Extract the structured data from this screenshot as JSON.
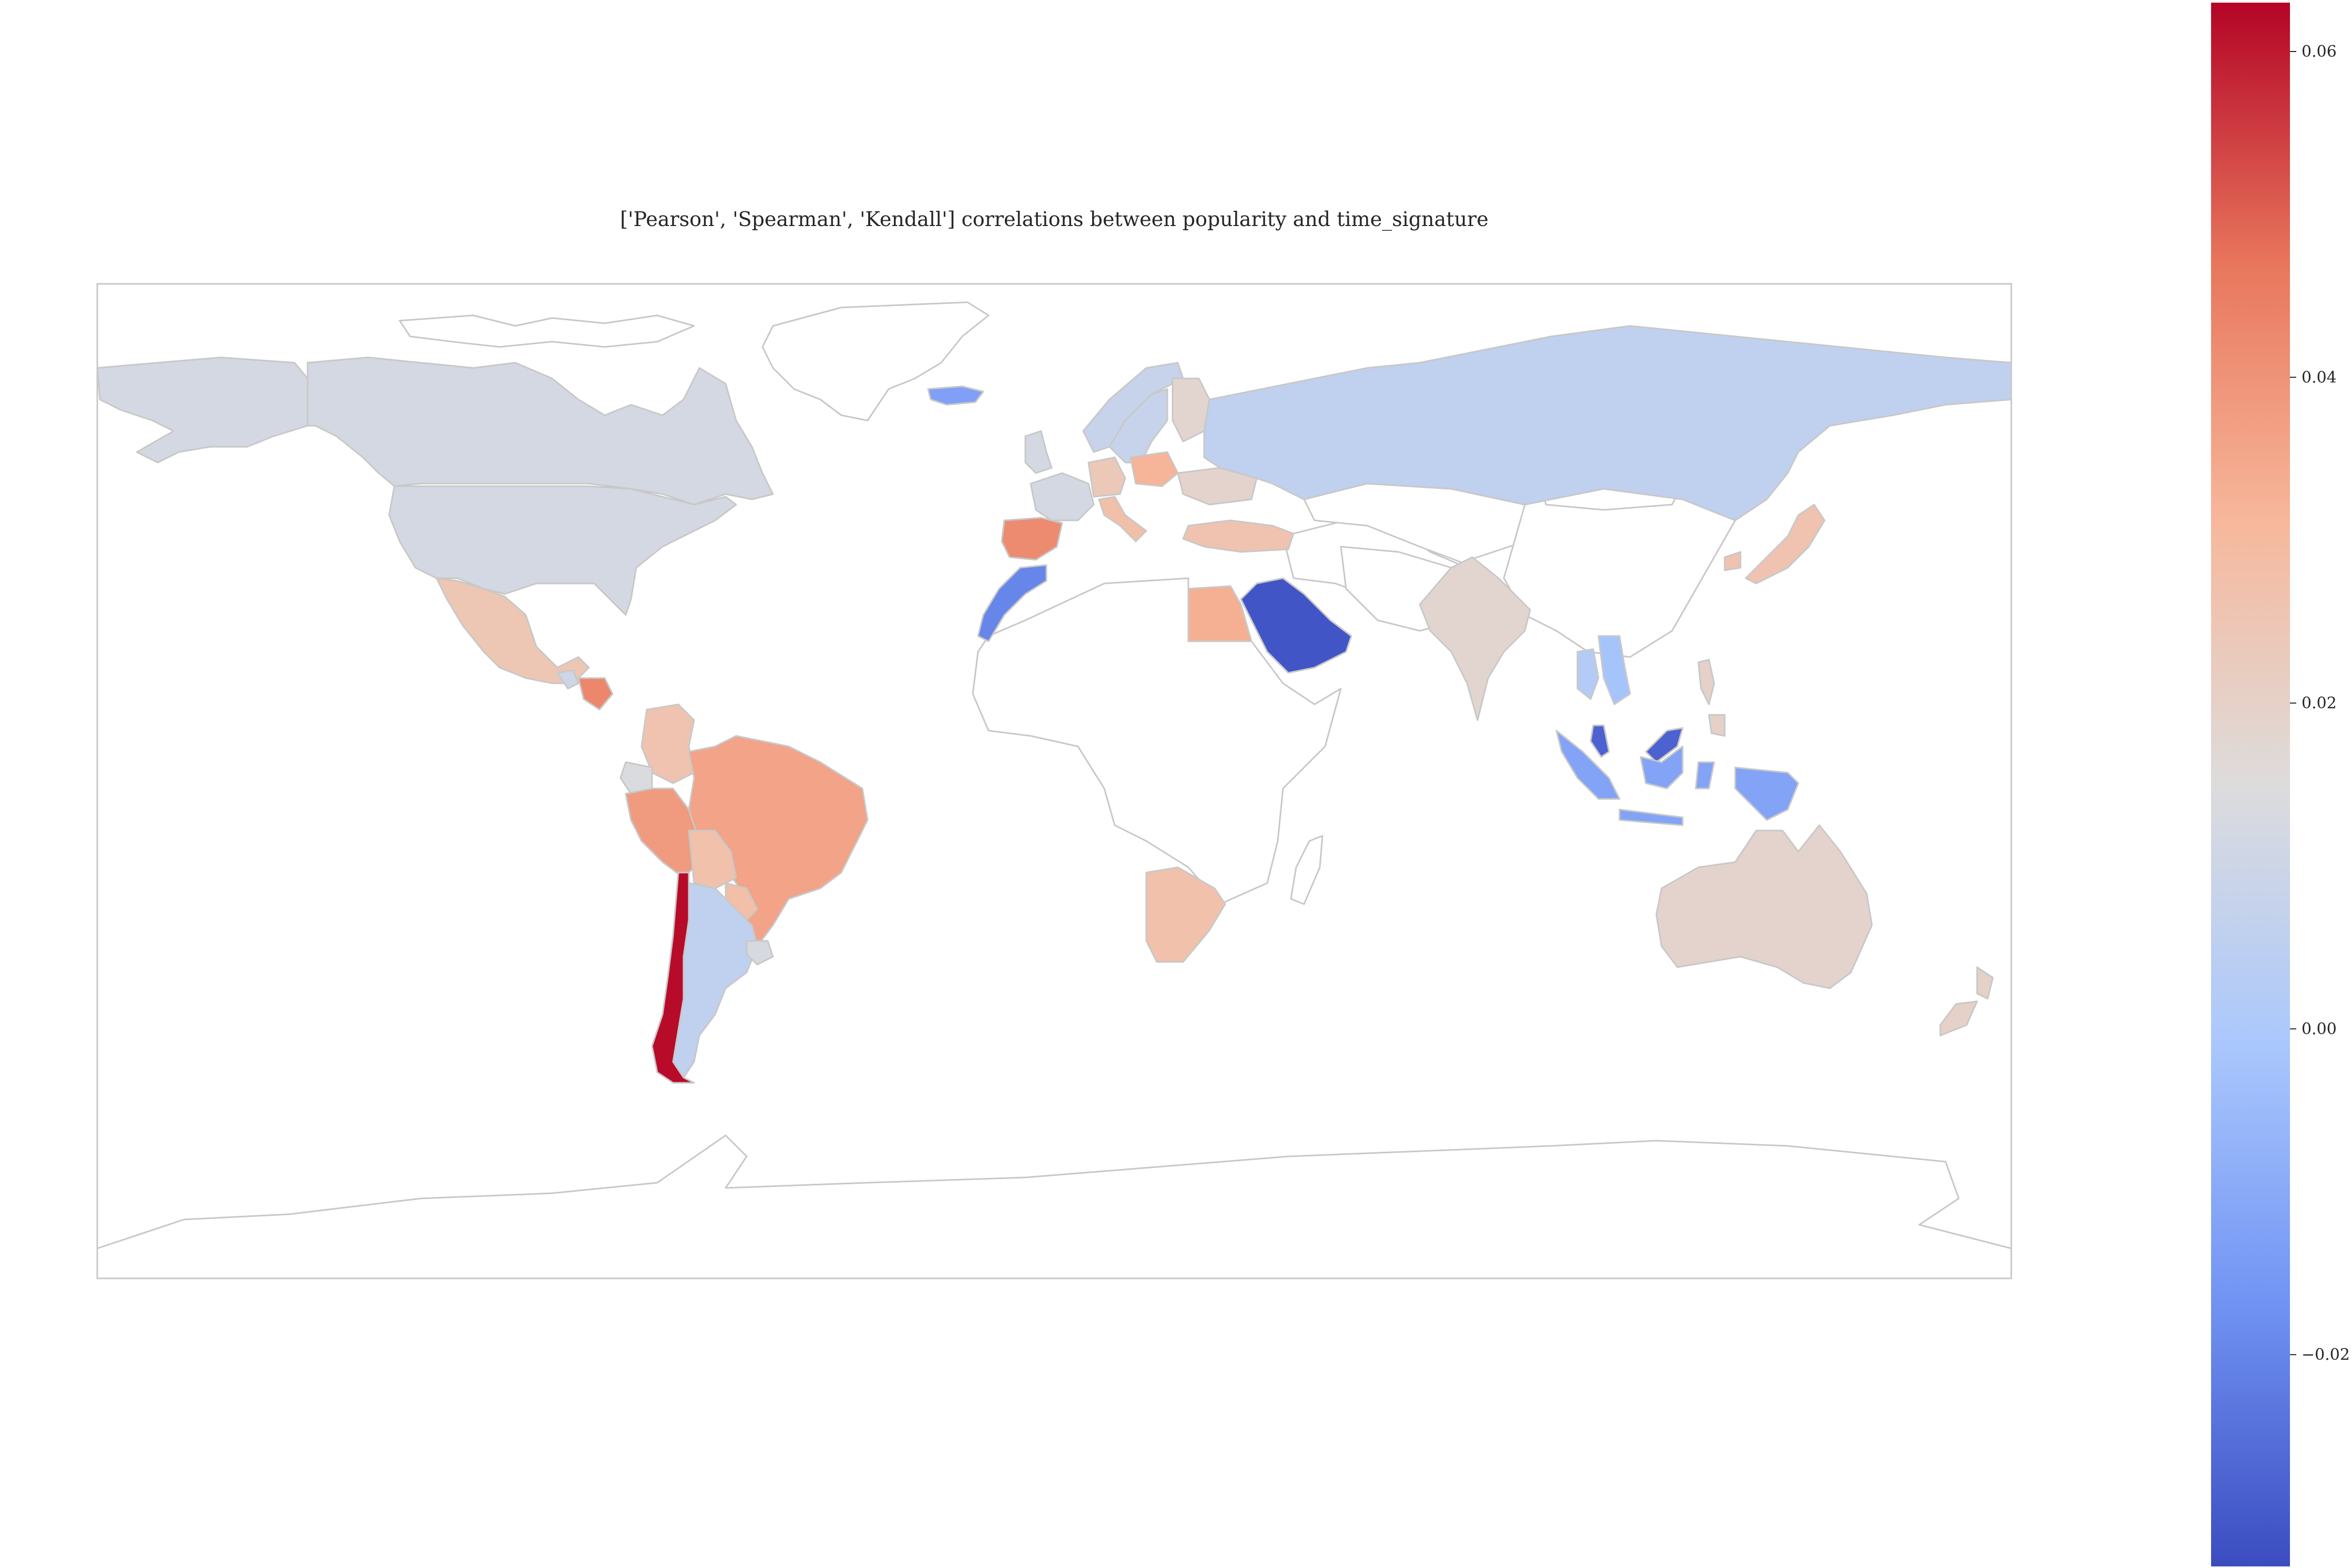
{
  "chart_data": {
    "type": "choropleth",
    "title": "['Pearson', 'Spearman', 'Kendall'] correlations between popularity and time_signature",
    "colormap": "coolwarm",
    "colorbar": {
      "min": -0.033,
      "max": 0.063,
      "ticks": [
        0.06,
        0.04,
        0.02,
        0.0,
        -0.02
      ],
      "tick_labels": [
        "0.06",
        "0.04",
        "0.02",
        "0.00",
        "−0.02"
      ],
      "colors": [
        "#3b4cc0",
        "#7093f3",
        "#aac7fd",
        "#dddcdc",
        "#f7b89c",
        "#e8765c",
        "#b40426"
      ]
    },
    "no_data_color": "#ffffff",
    "border_color": "#c8c8c8",
    "regions": [
      {
        "name": "Canada",
        "value": 0.012
      },
      {
        "name": "United States",
        "value": 0.012
      },
      {
        "name": "Alaska",
        "value": 0.012
      },
      {
        "name": "Greenland",
        "value": null
      },
      {
        "name": "Mexico",
        "value": 0.025
      },
      {
        "name": "Guatemala",
        "value": 0.01
      },
      {
        "name": "Honduras",
        "value": 0.043
      },
      {
        "name": "Colombia",
        "value": 0.026
      },
      {
        "name": "Ecuador",
        "value": 0.014
      },
      {
        "name": "Peru",
        "value": 0.038
      },
      {
        "name": "Brazil",
        "value": 0.036
      },
      {
        "name": "Bolivia",
        "value": 0.027
      },
      {
        "name": "Paraguay",
        "value": 0.028
      },
      {
        "name": "Argentina",
        "value": 0.006
      },
      {
        "name": "Uruguay",
        "value": 0.013
      },
      {
        "name": "Chile",
        "value": 0.062
      },
      {
        "name": "Iceland",
        "value": -0.013
      },
      {
        "name": "Norway",
        "value": 0.008
      },
      {
        "name": "Sweden",
        "value": 0.008
      },
      {
        "name": "Finland",
        "value": 0.018
      },
      {
        "name": "United Kingdom",
        "value": 0.012
      },
      {
        "name": "Spain",
        "value": 0.042
      },
      {
        "name": "France",
        "value": 0.012
      },
      {
        "name": "Germany",
        "value": 0.024
      },
      {
        "name": "Poland",
        "value": 0.032
      },
      {
        "name": "Italy",
        "value": 0.028
      },
      {
        "name": "Turkey",
        "value": 0.026
      },
      {
        "name": "Ukraine",
        "value": 0.019
      },
      {
        "name": "Russia",
        "value": 0.006
      },
      {
        "name": "Morocco",
        "value": -0.02
      },
      {
        "name": "Egypt",
        "value": 0.033
      },
      {
        "name": "Saudi Arabia",
        "value": -0.031
      },
      {
        "name": "South Africa",
        "value": 0.027
      },
      {
        "name": "India",
        "value": 0.018
      },
      {
        "name": "Thailand",
        "value": 0.002
      },
      {
        "name": "Vietnam",
        "value": -0.002
      },
      {
        "name": "Malaysia",
        "value": -0.028
      },
      {
        "name": "Indonesia",
        "value": -0.012
      },
      {
        "name": "Philippines",
        "value": 0.02
      },
      {
        "name": "Japan",
        "value": 0.026
      },
      {
        "name": "Australia",
        "value": 0.019
      },
      {
        "name": "New Zealand",
        "value": 0.02
      }
    ]
  }
}
